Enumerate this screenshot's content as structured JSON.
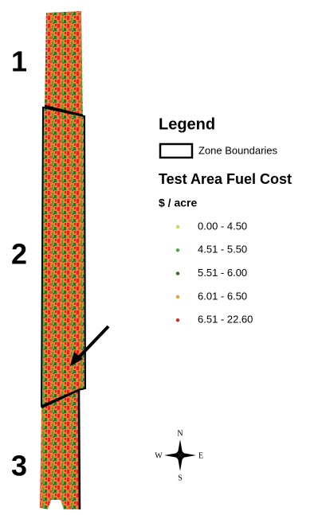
{
  "zones": [
    {
      "label": "1"
    },
    {
      "label": "2"
    },
    {
      "label": "3"
    }
  ],
  "legend": {
    "title": "Legend",
    "boundary_label": "Zone Boundaries",
    "layer_title": "Test Area Fuel Cost",
    "units": "$ / acre",
    "items": [
      {
        "label": "0.00 - 4.50",
        "color": "#c8d84a"
      },
      {
        "label": "4.51 - 5.50",
        "color": "#4aa83a"
      },
      {
        "label": "5.51 - 6.00",
        "color": "#2f6f22"
      },
      {
        "label": "6.01 - 6.50",
        "color": "#f09a30"
      },
      {
        "label": "6.51 - 22.60",
        "color": "#e0261e"
      }
    ]
  },
  "compass": {
    "north": "N",
    "south": "S",
    "west": "W",
    "east": "E"
  }
}
